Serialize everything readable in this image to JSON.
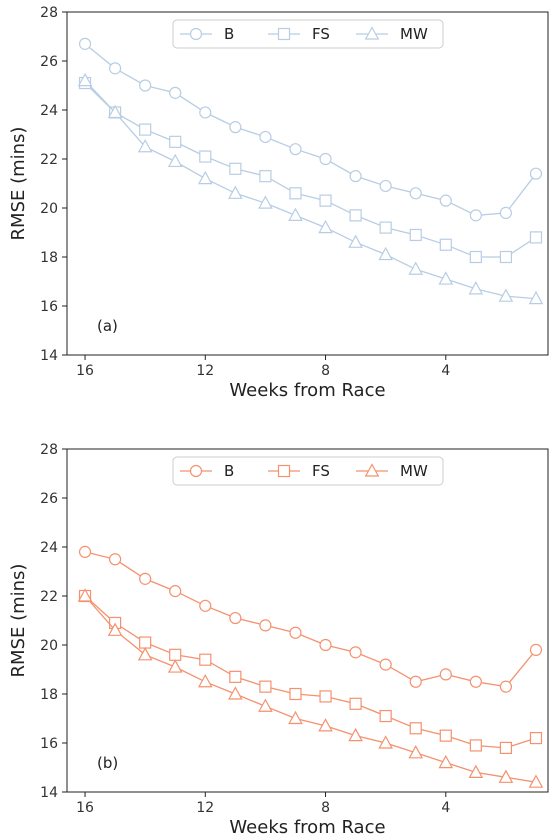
{
  "chart_data": [
    {
      "type": "line",
      "panel_label": "(a)",
      "color": "#b8cde4",
      "xlabel": "Weeks from Race",
      "ylabel": "RMSE (mins)",
      "xlim": [
        16.6,
        0.6
      ],
      "ylim": [
        14,
        28
      ],
      "xticks": [
        16,
        12,
        8,
        4
      ],
      "yticks": [
        14,
        16,
        18,
        20,
        22,
        24,
        26,
        28
      ],
      "legend_position": "top-center",
      "x": [
        16,
        15,
        14,
        13,
        12,
        11,
        10,
        9,
        8,
        7,
        6,
        5,
        4,
        3,
        2,
        1
      ],
      "series": [
        {
          "name": "B",
          "marker": "circle",
          "values": [
            26.7,
            25.7,
            25.0,
            24.7,
            23.9,
            23.3,
            22.9,
            22.4,
            22.0,
            21.3,
            20.9,
            20.6,
            20.3,
            19.7,
            19.8,
            21.4
          ]
        },
        {
          "name": "FS",
          "marker": "square",
          "values": [
            25.1,
            23.9,
            23.2,
            22.7,
            22.1,
            21.6,
            21.3,
            20.6,
            20.3,
            19.7,
            19.2,
            18.9,
            18.5,
            18.0,
            18.0,
            18.8
          ]
        },
        {
          "name": "MW",
          "marker": "triangle",
          "values": [
            25.2,
            23.9,
            22.5,
            21.9,
            21.2,
            20.6,
            20.2,
            19.7,
            19.2,
            18.6,
            18.1,
            17.5,
            17.1,
            16.7,
            16.4,
            16.3
          ]
        }
      ]
    },
    {
      "type": "line",
      "panel_label": "(b)",
      "color": "#f5916e",
      "xlabel": "Weeks from Race",
      "ylabel": "RMSE (mins)",
      "xlim": [
        16.6,
        0.6
      ],
      "ylim": [
        14,
        28
      ],
      "xticks": [
        16,
        12,
        8,
        4
      ],
      "yticks": [
        14,
        16,
        18,
        20,
        22,
        24,
        26,
        28
      ],
      "legend_position": "top-center",
      "x": [
        16,
        15,
        14,
        13,
        12,
        11,
        10,
        9,
        8,
        7,
        6,
        5,
        4,
        3,
        2,
        1
      ],
      "series": [
        {
          "name": "B",
          "marker": "circle",
          "values": [
            23.8,
            23.5,
            22.7,
            22.2,
            21.6,
            21.1,
            20.8,
            20.5,
            20.0,
            19.7,
            19.2,
            18.5,
            18.8,
            18.5,
            18.3,
            19.8
          ]
        },
        {
          "name": "FS",
          "marker": "square",
          "values": [
            22.0,
            20.9,
            20.1,
            19.6,
            19.4,
            18.7,
            18.3,
            18.0,
            17.9,
            17.6,
            17.1,
            16.6,
            16.3,
            15.9,
            15.8,
            16.2
          ]
        },
        {
          "name": "MW",
          "marker": "triangle",
          "values": [
            22.0,
            20.6,
            19.6,
            19.1,
            18.5,
            18.0,
            17.5,
            17.0,
            16.7,
            16.3,
            16.0,
            15.6,
            15.2,
            14.8,
            14.6,
            14.4
          ]
        }
      ]
    }
  ]
}
